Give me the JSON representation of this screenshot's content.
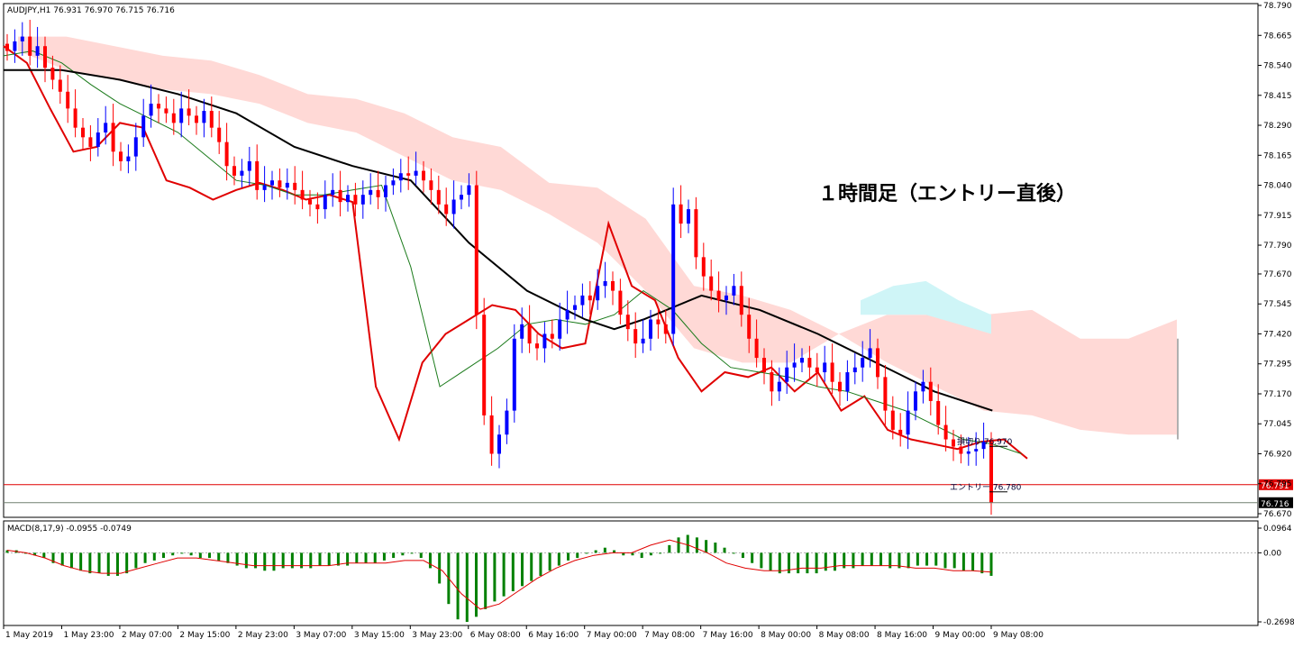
{
  "chart_data": {
    "type": "candlestick",
    "symbol_line": "AUDJPY,H1  76.931 76.970 76.715 76.716",
    "title_overlay": "１時間足（エントリー直後）",
    "price_axis": {
      "ticks": [
        "78.790",
        "78.665",
        "78.540",
        "78.415",
        "78.290",
        "78.165",
        "78.040",
        "77.915",
        "77.790",
        "77.670",
        "77.545",
        "77.420",
        "77.295",
        "77.170",
        "77.045",
        "76.920",
        "76.795",
        "76.670"
      ],
      "ylim": [
        76.67,
        78.79
      ]
    },
    "time_axis": {
      "ticks": [
        "1 May 2019",
        "1 May 23:00",
        "2 May 07:00",
        "2 May 15:00",
        "2 May 23:00",
        "3 May 07:00",
        "3 May 15:00",
        "3 May 23:00",
        "6 May 08:00",
        "6 May 16:00",
        "7 May 00:00",
        "7 May 08:00",
        "7 May 16:00",
        "8 May 00:00",
        "8 May 08:00",
        "8 May 16:00",
        "9 May 00:00",
        "9 May 08:00"
      ]
    },
    "candle_closes": [
      78.6,
      78.64,
      78.66,
      78.58,
      78.62,
      78.53,
      78.48,
      78.43,
      78.36,
      78.28,
      78.24,
      78.2,
      78.26,
      78.3,
      78.18,
      78.14,
      78.16,
      78.24,
      78.33,
      78.38,
      78.36,
      78.34,
      78.3,
      78.36,
      78.33,
      78.3,
      78.35,
      78.28,
      78.22,
      78.12,
      78.08,
      78.1,
      78.14,
      78.02,
      78.04,
      78.06,
      78.03,
      78.05,
      78.02,
      77.98,
      77.96,
      77.94,
      78.0,
      78.02,
      77.97,
      78.0,
      77.96,
      78.0,
      78.02,
      77.99,
      78.04,
      78.06,
      78.09,
      78.08,
      78.1,
      78.06,
      78.02,
      77.96,
      77.92,
      77.98,
      78.0,
      78.04,
      77.5,
      77.08,
      76.92,
      77.0,
      77.1,
      77.4,
      77.46,
      77.38,
      77.36,
      77.42,
      77.4,
      77.48,
      77.52,
      77.54,
      77.58,
      77.56,
      77.62,
      77.64,
      77.6,
      77.5,
      77.44,
      77.38,
      77.4,
      77.48,
      77.46,
      77.42,
      77.96,
      77.88,
      77.94,
      77.74,
      77.66,
      77.6,
      77.56,
      77.58,
      77.62,
      77.5,
      77.4,
      77.32,
      77.26,
      77.18,
      77.22,
      77.28,
      77.3,
      77.32,
      77.28,
      77.26,
      77.3,
      77.22,
      77.18,
      77.26,
      77.28,
      77.32,
      77.36,
      77.24,
      77.1,
      77.02,
      77.0,
      77.1,
      77.18,
      77.22,
      77.14,
      77.04,
      76.98,
      76.95,
      76.92,
      76.93,
      76.94,
      76.97,
      76.716
    ],
    "series": [
      {
        "name": "",
        "color": "#e00000",
        "points": [
          [
            0,
            78.62
          ],
          [
            8,
            78.55
          ],
          [
            16,
            78.36
          ],
          [
            24,
            78.18
          ],
          [
            32,
            78.2
          ],
          [
            40,
            78.3
          ],
          [
            48,
            78.28
          ],
          [
            56,
            78.06
          ],
          [
            64,
            78.03
          ],
          [
            72,
            77.98
          ],
          [
            80,
            78.02
          ],
          [
            88,
            78.05
          ],
          [
            96,
            78.02
          ],
          [
            104,
            77.98
          ],
          [
            112,
            78.0
          ],
          [
            120,
            77.97
          ],
          [
            128,
            77.2
          ],
          [
            136,
            76.98
          ],
          [
            144,
            77.3
          ],
          [
            152,
            77.42
          ],
          [
            160,
            77.48
          ],
          [
            168,
            77.54
          ],
          [
            176,
            77.52
          ],
          [
            184,
            77.42
          ],
          [
            192,
            77.36
          ],
          [
            200,
            77.38
          ],
          [
            208,
            77.88
          ],
          [
            216,
            77.62
          ],
          [
            224,
            77.56
          ],
          [
            232,
            77.32
          ],
          [
            240,
            77.18
          ],
          [
            248,
            77.26
          ],
          [
            256,
            77.24
          ],
          [
            264,
            77.28
          ],
          [
            272,
            77.18
          ],
          [
            280,
            77.26
          ],
          [
            288,
            77.1
          ],
          [
            296,
            77.16
          ],
          [
            304,
            77.02
          ],
          [
            312,
            76.98
          ],
          [
            320,
            76.96
          ],
          [
            328,
            76.94
          ],
          [
            336,
            76.97
          ],
          [
            344,
            76.98
          ],
          [
            352,
            76.9
          ]
        ]
      },
      {
        "name": "",
        "color": "#1a7a1a",
        "points": [
          [
            0,
            78.58
          ],
          [
            10,
            78.6
          ],
          [
            20,
            78.55
          ],
          [
            30,
            78.46
          ],
          [
            40,
            78.38
          ],
          [
            50,
            78.32
          ],
          [
            60,
            78.26
          ],
          [
            70,
            78.16
          ],
          [
            80,
            78.06
          ],
          [
            90,
            78.04
          ],
          [
            100,
            78.0
          ],
          [
            110,
            78.0
          ],
          [
            120,
            78.02
          ],
          [
            130,
            78.04
          ],
          [
            140,
            77.7
          ],
          [
            150,
            77.2
          ],
          [
            160,
            77.28
          ],
          [
            170,
            77.36
          ],
          [
            180,
            77.46
          ],
          [
            190,
            77.48
          ],
          [
            200,
            77.46
          ],
          [
            210,
            77.5
          ],
          [
            220,
            77.6
          ],
          [
            230,
            77.52
          ],
          [
            240,
            77.38
          ],
          [
            250,
            77.28
          ],
          [
            260,
            77.26
          ],
          [
            270,
            77.24
          ],
          [
            280,
            77.2
          ],
          [
            290,
            77.18
          ],
          [
            300,
            77.14
          ],
          [
            310,
            77.1
          ],
          [
            320,
            77.04
          ],
          [
            330,
            76.98
          ],
          [
            340,
            76.96
          ],
          [
            350,
            76.92
          ]
        ]
      },
      {
        "name": "",
        "color": "#000000",
        "points": [
          [
            0,
            78.52
          ],
          [
            20,
            78.52
          ],
          [
            40,
            78.48
          ],
          [
            60,
            78.42
          ],
          [
            80,
            78.34
          ],
          [
            100,
            78.2
          ],
          [
            120,
            78.12
          ],
          [
            140,
            78.06
          ],
          [
            160,
            77.8
          ],
          [
            180,
            77.6
          ],
          [
            200,
            77.48
          ],
          [
            210,
            77.44
          ],
          [
            220,
            77.48
          ],
          [
            240,
            77.58
          ],
          [
            260,
            77.52
          ],
          [
            280,
            77.42
          ],
          [
            300,
            77.3
          ],
          [
            320,
            77.18
          ],
          [
            340,
            77.1
          ]
        ]
      }
    ],
    "cloud_red_top": [
      78.66,
      78.66,
      78.62,
      78.58,
      78.56,
      78.5,
      78.42,
      78.4,
      78.34,
      78.24,
      78.2,
      78.05,
      78.03,
      77.9,
      77.62,
      77.58,
      77.52,
      77.42,
      77.5,
      77.5,
      77.5,
      77.52,
      77.4,
      77.4,
      77.48
    ],
    "cloud_red_bottom": [
      78.6,
      78.52,
      78.48,
      78.44,
      78.42,
      78.38,
      78.3,
      78.26,
      78.16,
      78.06,
      78.02,
      77.92,
      77.8,
      77.6,
      77.36,
      77.3,
      77.3,
      77.42,
      77.3,
      77.2,
      77.1,
      77.08,
      77.02,
      77.0,
      77.0
    ],
    "cloud_blue_top": [
      77.56,
      77.62,
      77.64,
      77.56,
      77.5
    ],
    "cloud_blue_bottom": [
      77.5,
      77.5,
      77.5,
      77.46,
      77.42
    ],
    "annotations": [
      {
        "text": "損切り 76.970",
        "value": 76.97
      },
      {
        "text": "エントリー 76.780",
        "value": 76.78
      }
    ],
    "horizontal_lines": [
      {
        "value": 76.791,
        "color": "#e00000",
        "label": "76.791"
      },
      {
        "value": 76.716,
        "color": "#708070",
        "label": "76.716"
      }
    ],
    "macd": {
      "label": "MACD(8,17,9) -0.0955 -0.0749",
      "ticks": [
        "0.0964",
        "0.00",
        "-0.2698"
      ],
      "ylim": [
        -0.2698,
        0.0964
      ],
      "hist": [
        0.01,
        0.01,
        0.0,
        -0.01,
        -0.02,
        -0.04,
        -0.05,
        -0.06,
        -0.07,
        -0.08,
        -0.08,
        -0.09,
        -0.09,
        -0.08,
        -0.06,
        -0.04,
        -0.03,
        -0.02,
        -0.01,
        0.0,
        -0.01,
        -0.02,
        -0.02,
        -0.03,
        -0.04,
        -0.05,
        -0.06,
        -0.06,
        -0.07,
        -0.07,
        -0.06,
        -0.06,
        -0.06,
        -0.06,
        -0.05,
        -0.05,
        -0.05,
        -0.05,
        -0.04,
        -0.04,
        -0.04,
        -0.03,
        -0.02,
        -0.01,
        0.0,
        -0.02,
        -0.06,
        -0.12,
        -0.2,
        -0.26,
        -0.27,
        -0.25,
        -0.22,
        -0.19,
        -0.17,
        -0.15,
        -0.13,
        -0.11,
        -0.09,
        -0.07,
        -0.05,
        -0.03,
        -0.02,
        0.0,
        0.01,
        0.02,
        0.01,
        -0.01,
        -0.01,
        -0.02,
        -0.01,
        0.0,
        0.03,
        0.06,
        0.07,
        0.06,
        0.05,
        0.04,
        0.02,
        0.0,
        -0.02,
        -0.04,
        -0.06,
        -0.07,
        -0.08,
        -0.08,
        -0.08,
        -0.08,
        -0.08,
        -0.07,
        -0.07,
        -0.06,
        -0.06,
        -0.05,
        -0.05,
        -0.05,
        -0.06,
        -0.06,
        -0.06,
        -0.05,
        -0.05,
        -0.05,
        -0.06,
        -0.06,
        -0.07,
        -0.07,
        -0.08,
        -0.09
      ],
      "signal": [
        0.01,
        0.0,
        -0.02,
        -0.05,
        -0.07,
        -0.08,
        -0.08,
        -0.06,
        -0.04,
        -0.02,
        -0.02,
        -0.03,
        -0.04,
        -0.05,
        -0.05,
        -0.05,
        -0.05,
        -0.05,
        -0.04,
        -0.04,
        -0.04,
        -0.03,
        -0.03,
        -0.07,
        -0.16,
        -0.22,
        -0.2,
        -0.15,
        -0.1,
        -0.06,
        -0.03,
        -0.01,
        0.0,
        0.0,
        0.03,
        0.05,
        0.03,
        0.0,
        -0.04,
        -0.06,
        -0.07,
        -0.07,
        -0.06,
        -0.06,
        -0.05,
        -0.05,
        -0.05,
        -0.05,
        -0.06,
        -0.06,
        -0.07,
        -0.07,
        -0.075
      ]
    }
  }
}
